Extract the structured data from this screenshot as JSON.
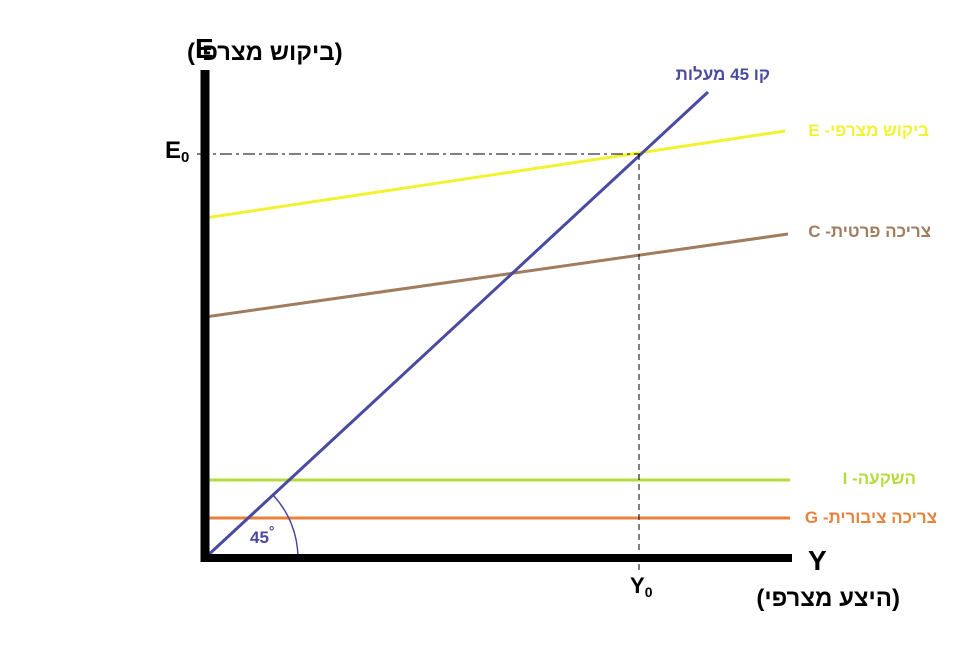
{
  "axes": {
    "y_letter": "E",
    "y_caption": "(ביקוש מצרפי)",
    "x_letter": "Y",
    "x_caption": "(היצע מצרפי)",
    "e0_main": "E",
    "e0_sub": "0",
    "y0_main": "Y",
    "y0_sub": "0"
  },
  "lines": {
    "line45": {
      "label": "קו 45 מעלות",
      "color": "#4a4aa0"
    },
    "demand": {
      "label": "ביקוש מצרפי- E",
      "color": "#f2f232"
    },
    "consumption": {
      "label": "צריכה פרטית- C",
      "color": "#a07c60"
    },
    "investment": {
      "label": "השקעה- I",
      "color": "#b4dc3c"
    },
    "government": {
      "label": "צריכה ציבורית- G",
      "color": "#e8823c"
    }
  },
  "angle": {
    "value": "45",
    "degree_mark": "°"
  }
}
